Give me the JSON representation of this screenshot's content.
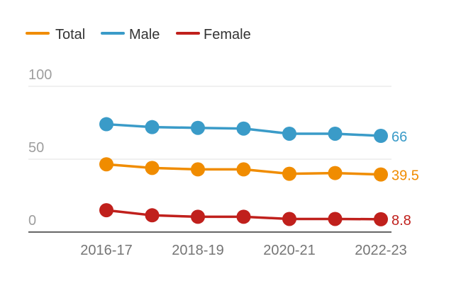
{
  "chart_data": {
    "type": "line",
    "title": "",
    "xlabel": "",
    "ylabel": "",
    "x": [
      "2016-17",
      "2017-18",
      "2018-19",
      "2019-20",
      "2020-21",
      "2021-22",
      "2022-23"
    ],
    "x_tick_labels": [
      "2016-17",
      "2018-19",
      "2020-21",
      "2022-23"
    ],
    "y_ticks": [
      "0",
      "50",
      "100"
    ],
    "ylim": [
      0,
      100
    ],
    "grid": true,
    "legend_position": "top-left",
    "series": [
      {
        "name": "Total",
        "color": "#f08c00",
        "values": [
          46.5,
          44,
          43,
          43,
          40,
          40.5,
          39.5
        ],
        "end_label": "39.5"
      },
      {
        "name": "Male",
        "color": "#3a9bc8",
        "values": [
          74,
          72,
          71.5,
          71,
          67.5,
          67.5,
          66
        ],
        "end_label": "66"
      },
      {
        "name": "Female",
        "color": "#c0201c",
        "values": [
          15,
          11.5,
          10.5,
          10.5,
          9,
          9,
          8.8
        ],
        "end_label": "8.8"
      }
    ]
  }
}
